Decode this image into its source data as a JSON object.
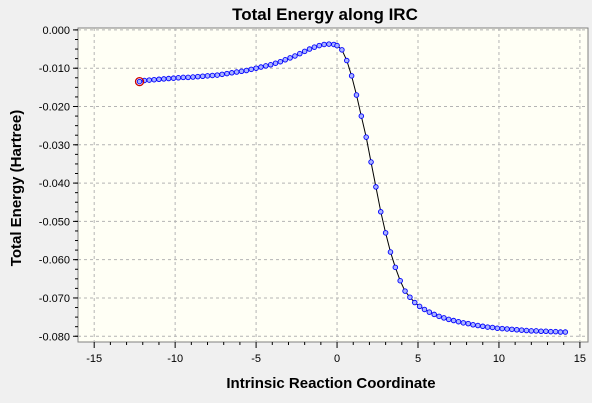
{
  "chart_data": {
    "type": "line",
    "title": "Total Energy along IRC",
    "xlabel": "Intrinsic Reaction Coordinate",
    "ylabel": "Total Energy (Hartree)",
    "xlim": [
      -16,
      15.5
    ],
    "ylim": [
      -0.0815,
      0.0005
    ],
    "x_ticks": [
      -15,
      -10,
      -5,
      0,
      5,
      10,
      15
    ],
    "x_tick_labels": [
      "-15",
      "-10",
      "-5",
      "0",
      "5",
      "10",
      "15"
    ],
    "y_ticks": [
      0,
      -0.01,
      -0.02,
      -0.03,
      -0.04,
      -0.05,
      -0.06,
      -0.07,
      -0.08
    ],
    "y_tick_labels": [
      "0.000",
      "-0.010",
      "-0.020",
      "-0.030",
      "-0.040",
      "-0.050",
      "-0.060",
      "-0.070",
      "-0.080"
    ],
    "grid": true,
    "colors": {
      "plot_background": "#fffff5",
      "line": "#000000",
      "marker_fill": "#aab4ff",
      "marker_stroke": "#0000ff",
      "highlight": "#cc0000",
      "grid": "#b4b4b4"
    },
    "highlight_point": {
      "x": -12.2,
      "y": -0.0135
    },
    "series": [
      {
        "x": [
          -12.2,
          -11.9,
          -11.6,
          -11.3,
          -11.0,
          -10.7,
          -10.4,
          -10.1,
          -9.8,
          -9.5,
          -9.2,
          -8.9,
          -8.6,
          -8.3,
          -8.0,
          -7.7,
          -7.4,
          -7.1,
          -6.8,
          -6.5,
          -6.2,
          -5.9,
          -5.6,
          -5.3,
          -5.0,
          -4.7,
          -4.4,
          -4.1,
          -3.8,
          -3.5,
          -3.2,
          -2.9,
          -2.6,
          -2.3,
          -2.0,
          -1.7,
          -1.4,
          -1.1,
          -0.8,
          -0.5,
          -0.2,
          0.0,
          0.3,
          0.6,
          0.9,
          1.2,
          1.5,
          1.8,
          2.1,
          2.4,
          2.7,
          3.0,
          3.3,
          3.6,
          3.9,
          4.2,
          4.5,
          4.8,
          5.1,
          5.4,
          5.7,
          6.0,
          6.3,
          6.6,
          6.9,
          7.2,
          7.5,
          7.8,
          8.1,
          8.4,
          8.7,
          9.0,
          9.3,
          9.6,
          9.9,
          10.2,
          10.5,
          10.8,
          11.1,
          11.4,
          11.7,
          12.0,
          12.3,
          12.6,
          12.9,
          13.2,
          13.5,
          13.8,
          14.1
        ],
        "y": [
          -0.0135,
          -0.0132,
          -0.0131,
          -0.013,
          -0.0129,
          -0.0128,
          -0.0127,
          -0.0126,
          -0.0125,
          -0.0124,
          -0.0124,
          -0.0123,
          -0.0122,
          -0.0121,
          -0.012,
          -0.0119,
          -0.0118,
          -0.0116,
          -0.0114,
          -0.0112,
          -0.011,
          -0.0108,
          -0.0106,
          -0.0103,
          -0.01,
          -0.0097,
          -0.0094,
          -0.0091,
          -0.0087,
          -0.0083,
          -0.0078,
          -0.0073,
          -0.0068,
          -0.0062,
          -0.0056,
          -0.005,
          -0.0045,
          -0.0041,
          -0.0038,
          -0.0037,
          -0.0038,
          -0.0041,
          -0.0052,
          -0.008,
          -0.012,
          -0.017,
          -0.0225,
          -0.028,
          -0.0345,
          -0.041,
          -0.0475,
          -0.053,
          -0.058,
          -0.062,
          -0.0655,
          -0.0682,
          -0.0698,
          -0.0712,
          -0.0722,
          -0.073,
          -0.0737,
          -0.0743,
          -0.0748,
          -0.0752,
          -0.0756,
          -0.0759,
          -0.0762,
          -0.0765,
          -0.0767,
          -0.077,
          -0.0772,
          -0.0774,
          -0.0776,
          -0.0777,
          -0.0779,
          -0.078,
          -0.0781,
          -0.0782,
          -0.0783,
          -0.0784,
          -0.0785,
          -0.0786,
          -0.0786,
          -0.0787,
          -0.0787,
          -0.0788,
          -0.0788,
          -0.0789,
          -0.0789
        ]
      }
    ]
  }
}
